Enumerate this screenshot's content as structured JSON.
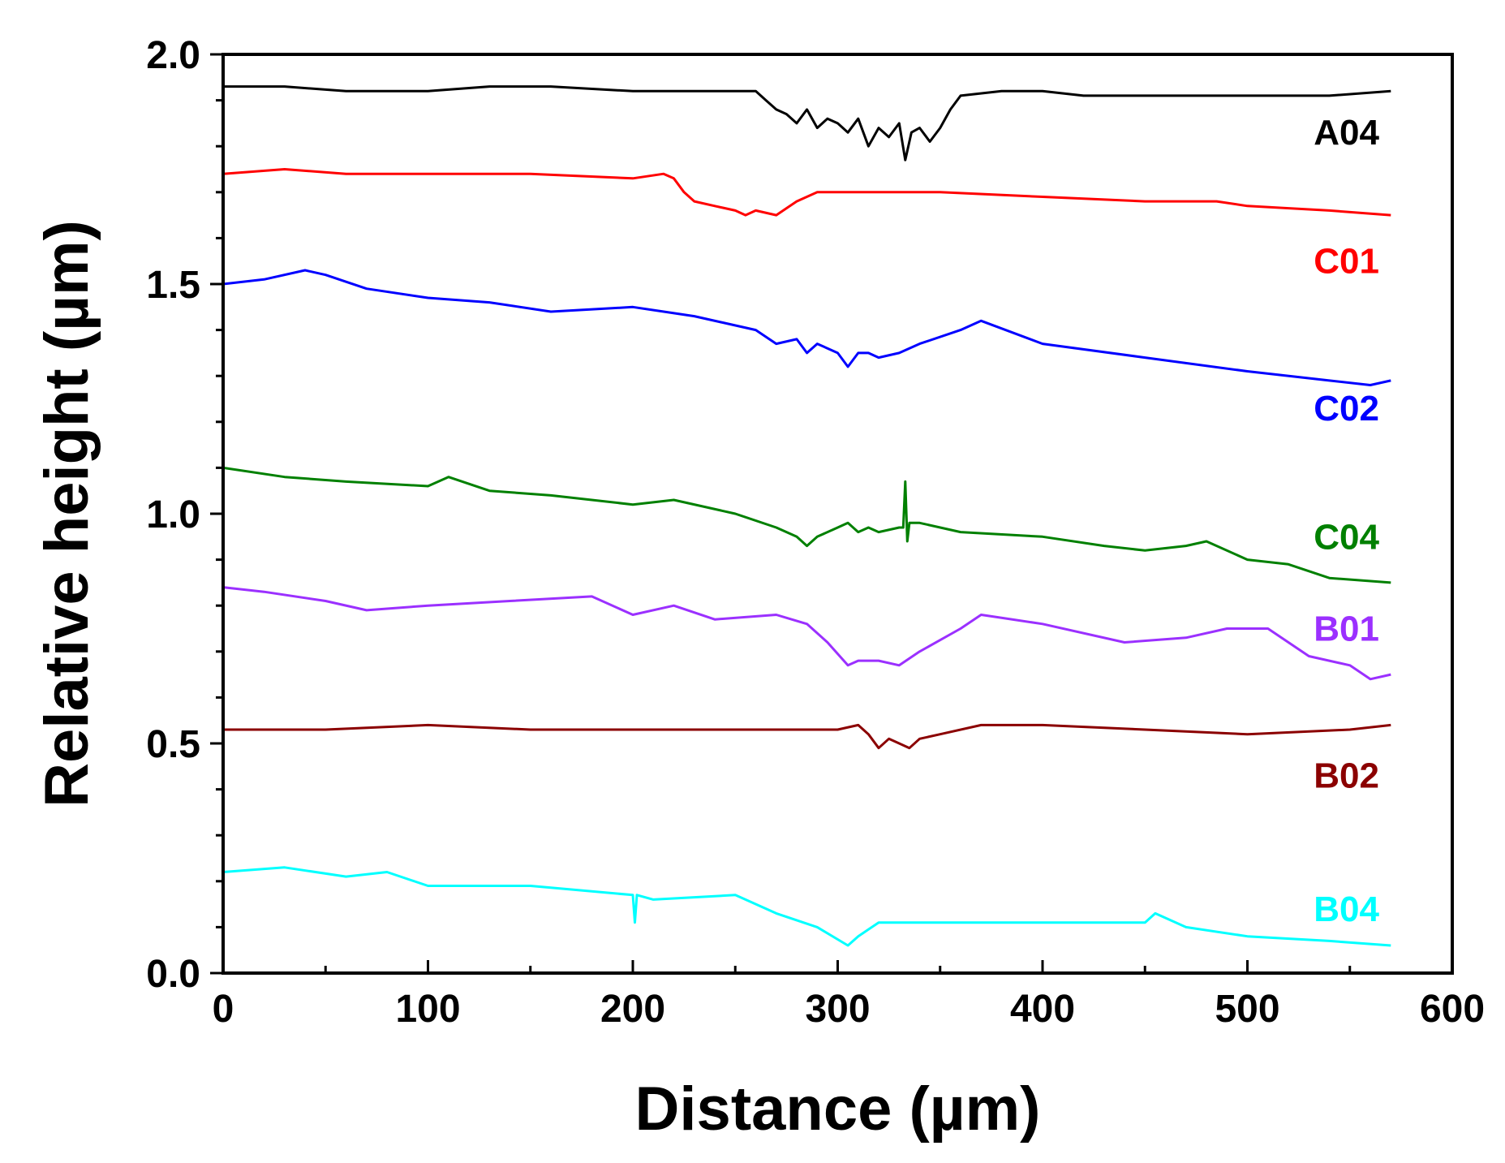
{
  "chart_data": {
    "type": "line",
    "title": "",
    "xlabel": "Distance (µm)",
    "ylabel": "Relative height (µm)",
    "xlim": [
      0,
      600
    ],
    "ylim": [
      0,
      2.0
    ],
    "x_ticks": [
      0,
      100,
      200,
      300,
      400,
      500,
      600
    ],
    "x_tick_labels": [
      "0",
      "100",
      "200",
      "300",
      "400",
      "500",
      "600"
    ],
    "y_ticks": [
      0,
      0.5,
      1.0,
      1.5,
      2.0
    ],
    "y_tick_labels": [
      "0.0",
      "0.5",
      "1.0",
      "1.5",
      "2.0"
    ],
    "grid": false,
    "legend": "inline-right",
    "series": [
      {
        "name": "A04",
        "color": "#000000",
        "label_y": 1.83,
        "x": [
          0,
          30,
          60,
          100,
          130,
          160,
          200,
          240,
          260,
          265,
          270,
          275,
          280,
          285,
          290,
          295,
          300,
          305,
          310,
          315,
          320,
          325,
          330,
          333,
          336,
          340,
          345,
          350,
          355,
          360,
          380,
          400,
          420,
          450,
          480,
          510,
          540,
          570
        ],
        "y": [
          1.93,
          1.93,
          1.92,
          1.92,
          1.93,
          1.93,
          1.92,
          1.92,
          1.92,
          1.9,
          1.88,
          1.87,
          1.85,
          1.88,
          1.84,
          1.86,
          1.85,
          1.83,
          1.86,
          1.8,
          1.84,
          1.82,
          1.85,
          1.77,
          1.83,
          1.84,
          1.81,
          1.84,
          1.88,
          1.91,
          1.92,
          1.92,
          1.91,
          1.91,
          1.91,
          1.91,
          1.91,
          1.92
        ]
      },
      {
        "name": "C01",
        "color": "#ff0000",
        "label_y": 1.55,
        "x": [
          0,
          30,
          60,
          100,
          150,
          200,
          215,
          220,
          225,
          230,
          240,
          250,
          255,
          260,
          270,
          280,
          290,
          300,
          320,
          350,
          400,
          450,
          480,
          485,
          500,
          540,
          570
        ],
        "y": [
          1.74,
          1.75,
          1.74,
          1.74,
          1.74,
          1.73,
          1.74,
          1.73,
          1.7,
          1.68,
          1.67,
          1.66,
          1.65,
          1.66,
          1.65,
          1.68,
          1.7,
          1.7,
          1.7,
          1.7,
          1.69,
          1.68,
          1.68,
          1.68,
          1.67,
          1.66,
          1.65
        ]
      },
      {
        "name": "C02",
        "color": "#0000ff",
        "label_y": 1.23,
        "x": [
          0,
          20,
          40,
          50,
          70,
          100,
          130,
          160,
          200,
          230,
          260,
          270,
          280,
          285,
          290,
          295,
          300,
          305,
          310,
          315,
          320,
          330,
          340,
          360,
          370,
          400,
          450,
          500,
          540,
          560,
          570
        ],
        "y": [
          1.5,
          1.51,
          1.53,
          1.52,
          1.49,
          1.47,
          1.46,
          1.44,
          1.45,
          1.43,
          1.4,
          1.37,
          1.38,
          1.35,
          1.37,
          1.36,
          1.35,
          1.32,
          1.35,
          1.35,
          1.34,
          1.35,
          1.37,
          1.4,
          1.42,
          1.37,
          1.34,
          1.31,
          1.29,
          1.28,
          1.29
        ]
      },
      {
        "name": "C04",
        "color": "#008000",
        "label_y": 0.95,
        "x": [
          0,
          30,
          60,
          100,
          110,
          130,
          160,
          200,
          220,
          250,
          270,
          280,
          285,
          290,
          300,
          305,
          310,
          315,
          320,
          330,
          332,
          333,
          334,
          335,
          340,
          360,
          400,
          430,
          450,
          470,
          480,
          500,
          520,
          540,
          570
        ],
        "y": [
          1.1,
          1.08,
          1.07,
          1.06,
          1.08,
          1.05,
          1.04,
          1.02,
          1.03,
          1.0,
          0.97,
          0.95,
          0.93,
          0.95,
          0.97,
          0.98,
          0.96,
          0.97,
          0.96,
          0.97,
          0.97,
          1.07,
          0.94,
          0.98,
          0.98,
          0.96,
          0.95,
          0.93,
          0.92,
          0.93,
          0.94,
          0.9,
          0.89,
          0.86,
          0.85
        ]
      },
      {
        "name": "B01",
        "color": "#9b30ff",
        "label_y": 0.75,
        "x": [
          0,
          20,
          50,
          70,
          100,
          140,
          180,
          200,
          220,
          240,
          270,
          285,
          295,
          305,
          310,
          320,
          330,
          340,
          360,
          370,
          400,
          440,
          470,
          490,
          510,
          530,
          550,
          560,
          570
        ],
        "y": [
          0.84,
          0.83,
          0.81,
          0.79,
          0.8,
          0.81,
          0.82,
          0.78,
          0.8,
          0.77,
          0.78,
          0.76,
          0.72,
          0.67,
          0.68,
          0.68,
          0.67,
          0.7,
          0.75,
          0.78,
          0.76,
          0.72,
          0.73,
          0.75,
          0.75,
          0.69,
          0.67,
          0.64,
          0.65
        ]
      },
      {
        "name": "B02",
        "color": "#8b0000",
        "label_y": 0.43,
        "x": [
          0,
          50,
          100,
          150,
          200,
          250,
          300,
          310,
          315,
          320,
          325,
          330,
          335,
          340,
          350,
          370,
          400,
          450,
          500,
          550,
          570
        ],
        "y": [
          0.53,
          0.53,
          0.54,
          0.53,
          0.53,
          0.53,
          0.53,
          0.54,
          0.52,
          0.49,
          0.51,
          0.5,
          0.49,
          0.51,
          0.52,
          0.54,
          0.54,
          0.53,
          0.52,
          0.53,
          0.54
        ]
      },
      {
        "name": "B04",
        "color": "#00ffff",
        "label_y": 0.14,
        "x": [
          0,
          30,
          60,
          80,
          100,
          150,
          200,
          201,
          202,
          210,
          250,
          270,
          290,
          305,
          310,
          320,
          350,
          400,
          450,
          455,
          470,
          500,
          540,
          570
        ],
        "y": [
          0.22,
          0.23,
          0.21,
          0.22,
          0.19,
          0.19,
          0.17,
          0.11,
          0.17,
          0.16,
          0.17,
          0.13,
          0.1,
          0.06,
          0.08,
          0.11,
          0.11,
          0.11,
          0.11,
          0.13,
          0.1,
          0.08,
          0.07,
          0.06
        ]
      }
    ]
  }
}
